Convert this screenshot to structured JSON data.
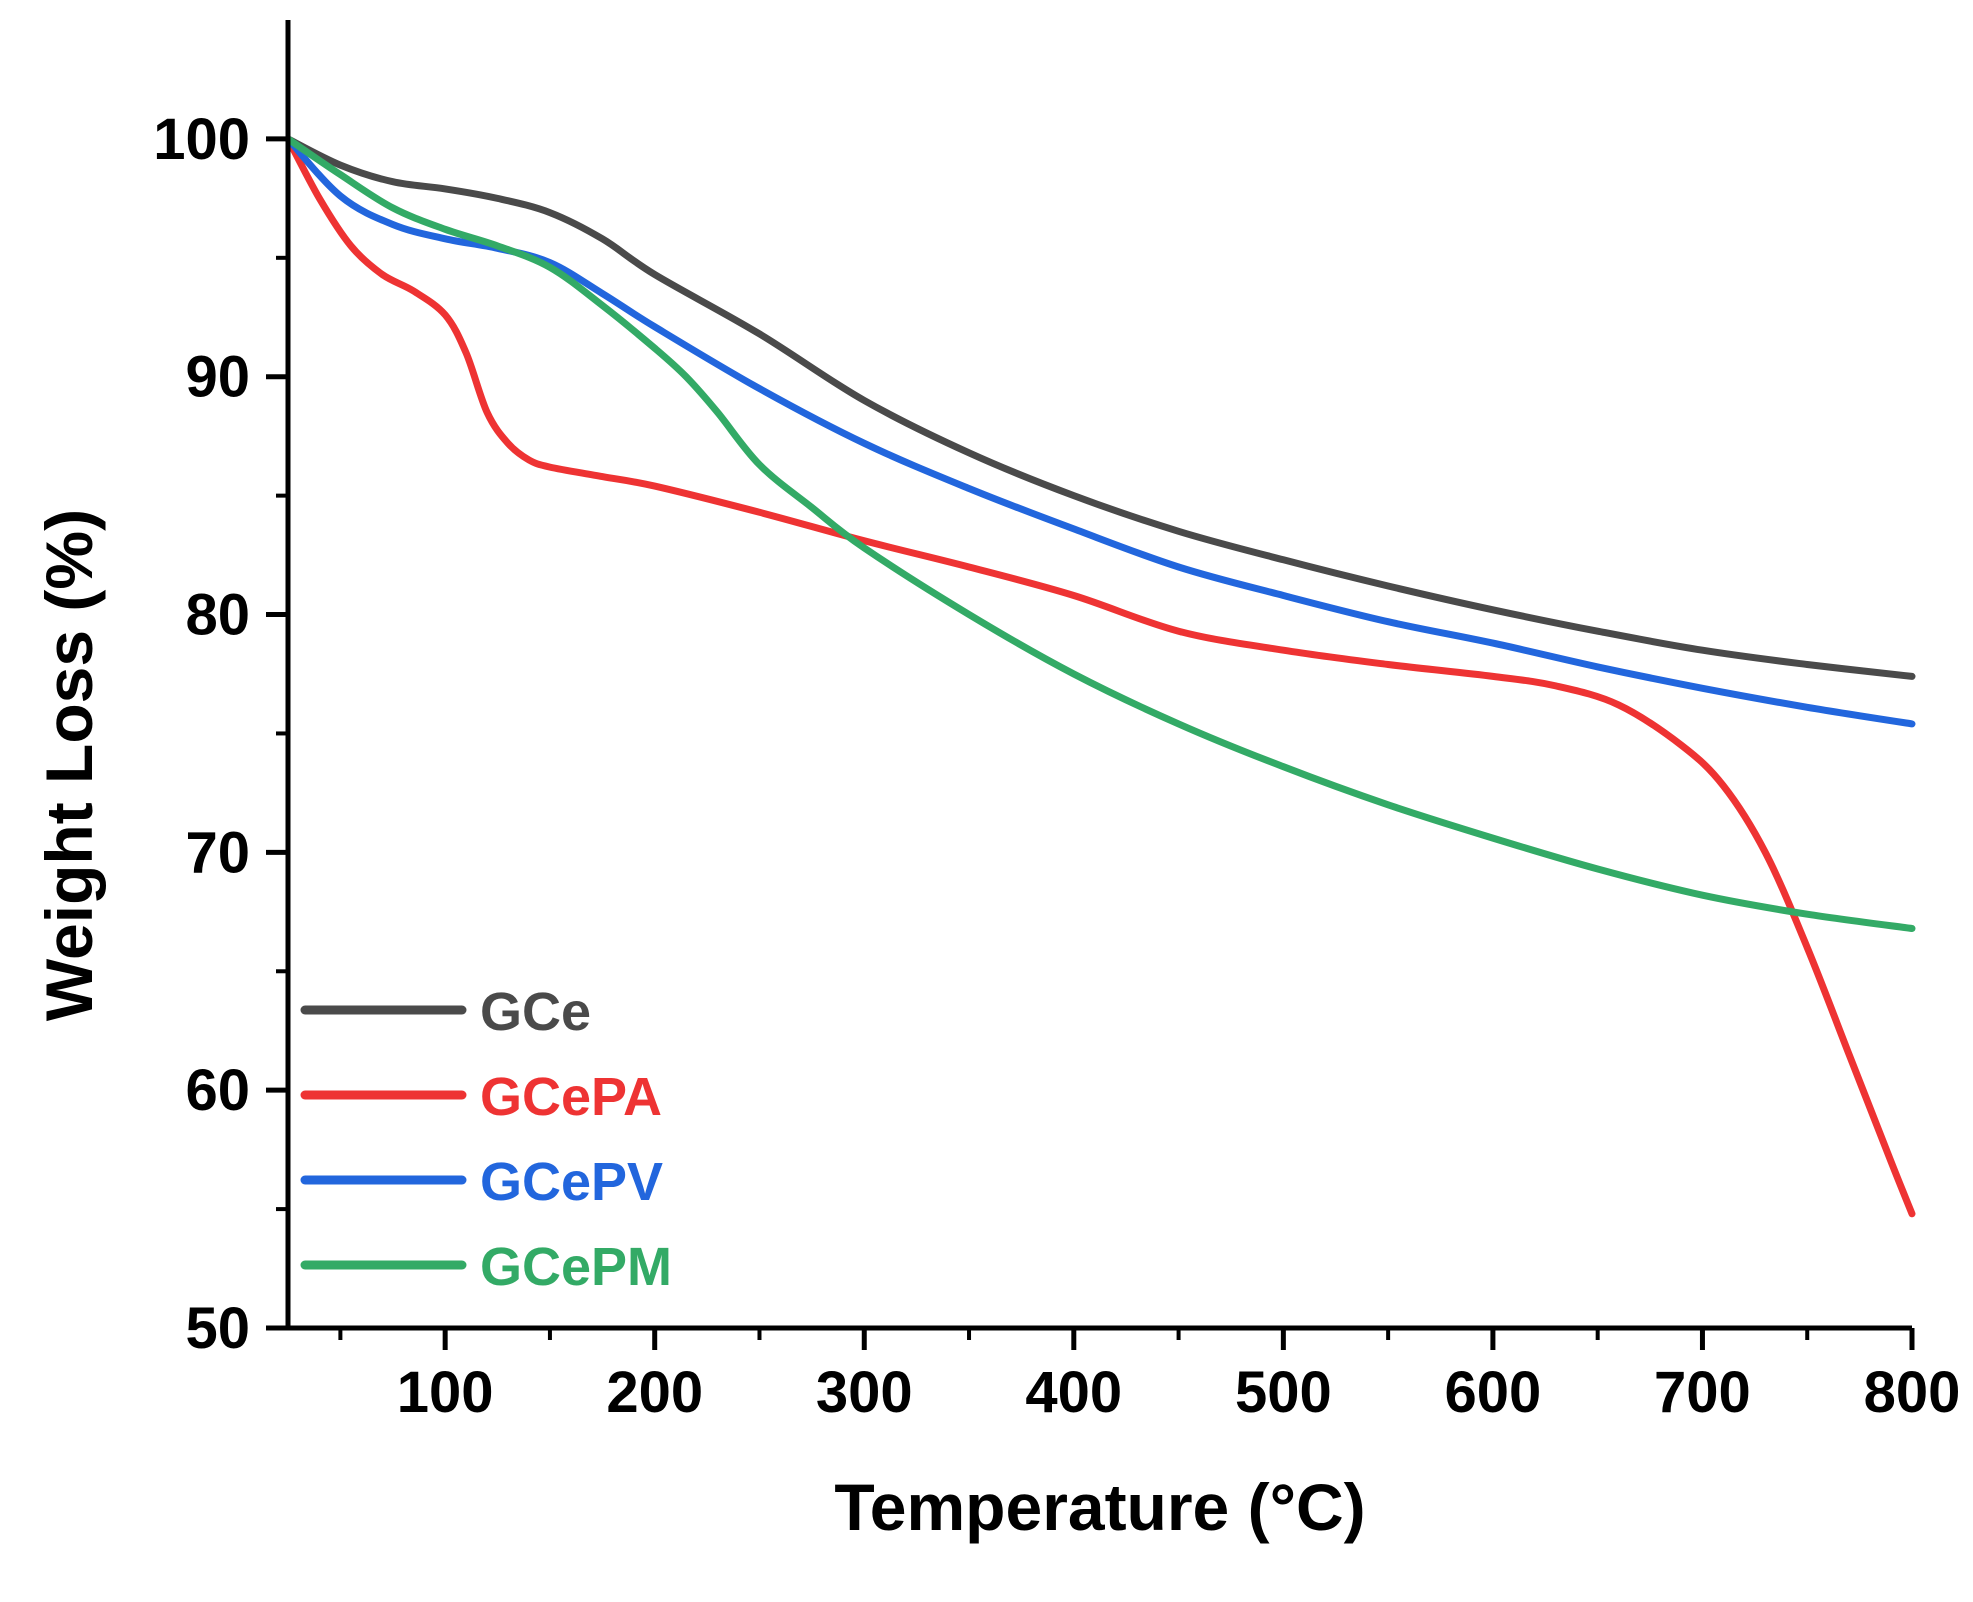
{
  "chart_data": {
    "type": "line",
    "title": "",
    "xlabel": "Temperature (°C)",
    "ylabel": "Weight Loss (%)",
    "xlim": [
      25,
      800
    ],
    "ylim": [
      50,
      105
    ],
    "x_ticks": [
      100,
      200,
      300,
      400,
      500,
      600,
      700,
      800
    ],
    "y_ticks": [
      50,
      60,
      70,
      80,
      90,
      100
    ],
    "grid": false,
    "legend_position": "bottom-left",
    "series": [
      {
        "name": "GCe",
        "color": "#4a4a4a",
        "x": [
          25,
          50,
          75,
          100,
          125,
          150,
          175,
          200,
          250,
          300,
          350,
          400,
          450,
          500,
          550,
          600,
          650,
          700,
          750,
          800
        ],
        "y": [
          100,
          98.9,
          98.2,
          97.9,
          97.5,
          96.9,
          95.8,
          94.3,
          91.8,
          89.0,
          86.8,
          85.0,
          83.5,
          82.3,
          81.2,
          80.2,
          79.3,
          78.5,
          77.9,
          77.4
        ]
      },
      {
        "name": "GCePA",
        "color": "#ee3333",
        "x": [
          25,
          40,
          55,
          70,
          85,
          100,
          110,
          120,
          130,
          140,
          150,
          175,
          200,
          250,
          300,
          350,
          400,
          450,
          500,
          550,
          600,
          630,
          660,
          690,
          710,
          730,
          750,
          770,
          790,
          800
        ],
        "y": [
          100,
          97.5,
          95.5,
          94.3,
          93.6,
          92.6,
          91.0,
          88.5,
          87.2,
          86.5,
          86.2,
          85.8,
          85.4,
          84.3,
          83.1,
          82.0,
          80.8,
          79.3,
          78.5,
          77.9,
          77.4,
          77.0,
          76.2,
          74.5,
          72.8,
          70.0,
          66.0,
          61.5,
          57.0,
          54.8
        ]
      },
      {
        "name": "GCePV",
        "color": "#2266dd",
        "x": [
          25,
          50,
          75,
          100,
          125,
          150,
          175,
          200,
          250,
          300,
          350,
          400,
          450,
          500,
          550,
          600,
          650,
          700,
          750,
          800
        ],
        "y": [
          100,
          97.6,
          96.4,
          95.8,
          95.4,
          94.8,
          93.5,
          92.1,
          89.5,
          87.2,
          85.3,
          83.6,
          82.0,
          80.8,
          79.7,
          78.8,
          77.8,
          76.9,
          76.1,
          75.4
        ]
      },
      {
        "name": "GCePM",
        "color": "#33aa66",
        "x": [
          25,
          50,
          75,
          100,
          125,
          150,
          175,
          200,
          215,
          230,
          250,
          275,
          300,
          350,
          400,
          450,
          500,
          550,
          600,
          650,
          700,
          750,
          800
        ],
        "y": [
          100,
          98.5,
          97.1,
          96.2,
          95.5,
          94.6,
          93.0,
          91.2,
          90.0,
          88.5,
          86.3,
          84.5,
          82.8,
          80.0,
          77.5,
          75.4,
          73.6,
          72.0,
          70.6,
          69.3,
          68.2,
          67.4,
          66.8
        ]
      }
    ]
  }
}
